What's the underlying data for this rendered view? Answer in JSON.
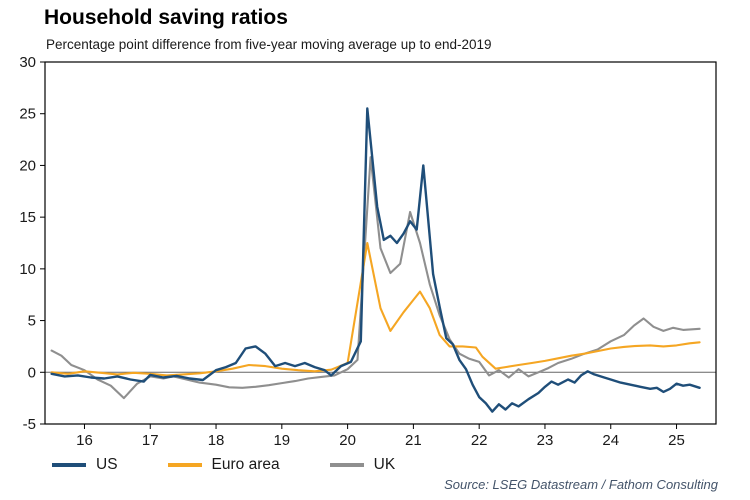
{
  "header": {
    "title": "Household saving ratios",
    "subtitle": "Percentage point difference from five-year moving average up to end-2019"
  },
  "source": "Source: LSEG Datastream / Fathom Consulting",
  "legend": [
    {
      "label": "US",
      "color": "#1F4E79"
    },
    {
      "label": "Euro area",
      "color": "#F5A623"
    },
    {
      "label": "UK",
      "color": "#8F8F8F"
    }
  ],
  "chart_data": {
    "type": "line",
    "title": "Household saving ratios",
    "subtitle": "Percentage point difference from five-year moving average up to end-2019",
    "xlabel": "",
    "ylabel": "",
    "grid": false,
    "legend_position": "bottom-left",
    "xlim": [
      2015.4,
      2025.6
    ],
    "ylim": [
      -5,
      30
    ],
    "y_ticks": [
      30,
      25,
      20,
      15,
      10,
      5,
      0,
      -5
    ],
    "x_ticks": [
      {
        "value": 2016,
        "label": "16"
      },
      {
        "value": 2017,
        "label": "17"
      },
      {
        "value": 2018,
        "label": "18"
      },
      {
        "value": 2019,
        "label": "19"
      },
      {
        "value": 2020,
        "label": "20"
      },
      {
        "value": 2021,
        "label": "21"
      },
      {
        "value": 2022,
        "label": "22"
      },
      {
        "value": 2023,
        "label": "23"
      },
      {
        "value": 2024,
        "label": "24"
      },
      {
        "value": 2025,
        "label": "25"
      }
    ],
    "zero_line": 0,
    "series": [
      {
        "name": "US",
        "color": "#1F4E79",
        "points": [
          [
            2015.5,
            -0.15
          ],
          [
            2015.7,
            -0.4
          ],
          [
            2015.9,
            -0.3
          ],
          [
            2016.1,
            -0.5
          ],
          [
            2016.3,
            -0.6
          ],
          [
            2016.5,
            -0.4
          ],
          [
            2016.7,
            -0.7
          ],
          [
            2016.9,
            -0.9
          ],
          [
            2017.0,
            -0.25
          ],
          [
            2017.2,
            -0.5
          ],
          [
            2017.4,
            -0.35
          ],
          [
            2017.6,
            -0.6
          ],
          [
            2017.8,
            -0.75
          ],
          [
            2018.0,
            0.2
          ],
          [
            2018.15,
            0.5
          ],
          [
            2018.3,
            0.9
          ],
          [
            2018.45,
            2.3
          ],
          [
            2018.6,
            2.5
          ],
          [
            2018.75,
            1.8
          ],
          [
            2018.9,
            0.6
          ],
          [
            2019.05,
            0.9
          ],
          [
            2019.2,
            0.6
          ],
          [
            2019.35,
            0.9
          ],
          [
            2019.5,
            0.5
          ],
          [
            2019.65,
            0.2
          ],
          [
            2019.75,
            -0.3
          ],
          [
            2019.9,
            0.6
          ],
          [
            2020.05,
            1.0
          ],
          [
            2020.2,
            3.0
          ],
          [
            2020.3,
            25.5
          ],
          [
            2020.45,
            16.0
          ],
          [
            2020.55,
            12.8
          ],
          [
            2020.65,
            13.2
          ],
          [
            2020.75,
            12.5
          ],
          [
            2020.85,
            13.4
          ],
          [
            2020.95,
            14.6
          ],
          [
            2021.05,
            13.8
          ],
          [
            2021.15,
            20.0
          ],
          [
            2021.3,
            9.5
          ],
          [
            2021.4,
            6.3
          ],
          [
            2021.5,
            3.3
          ],
          [
            2021.6,
            2.7
          ],
          [
            2021.7,
            1.2
          ],
          [
            2021.8,
            0.3
          ],
          [
            2021.9,
            -1.2
          ],
          [
            2022.0,
            -2.4
          ],
          [
            2022.1,
            -3.0
          ],
          [
            2022.2,
            -3.8
          ],
          [
            2022.3,
            -3.1
          ],
          [
            2022.4,
            -3.6
          ],
          [
            2022.5,
            -3.0
          ],
          [
            2022.6,
            -3.3
          ],
          [
            2022.75,
            -2.6
          ],
          [
            2022.9,
            -2.0
          ],
          [
            2023.0,
            -1.4
          ],
          [
            2023.1,
            -0.9
          ],
          [
            2023.2,
            -1.2
          ],
          [
            2023.35,
            -0.7
          ],
          [
            2023.45,
            -1.0
          ],
          [
            2023.55,
            -0.3
          ],
          [
            2023.65,
            0.1
          ],
          [
            2023.75,
            -0.2
          ],
          [
            2023.9,
            -0.5
          ],
          [
            2024.0,
            -0.7
          ],
          [
            2024.15,
            -1.0
          ],
          [
            2024.3,
            -1.2
          ],
          [
            2024.45,
            -1.4
          ],
          [
            2024.6,
            -1.6
          ],
          [
            2024.7,
            -1.5
          ],
          [
            2024.8,
            -1.9
          ],
          [
            2024.9,
            -1.6
          ],
          [
            2025.0,
            -1.1
          ],
          [
            2025.1,
            -1.3
          ],
          [
            2025.2,
            -1.2
          ],
          [
            2025.35,
            -1.5
          ]
        ]
      },
      {
        "name": "Euro area",
        "color": "#F5A623",
        "points": [
          [
            2015.5,
            0.0
          ],
          [
            2015.75,
            -0.15
          ],
          [
            2016.0,
            0.1
          ],
          [
            2016.25,
            -0.05
          ],
          [
            2016.5,
            -0.2
          ],
          [
            2016.75,
            -0.05
          ],
          [
            2017.0,
            -0.15
          ],
          [
            2017.25,
            -0.3
          ],
          [
            2017.5,
            -0.2
          ],
          [
            2017.75,
            -0.1
          ],
          [
            2018.0,
            0.1
          ],
          [
            2018.25,
            0.35
          ],
          [
            2018.5,
            0.7
          ],
          [
            2018.75,
            0.6
          ],
          [
            2019.0,
            0.35
          ],
          [
            2019.25,
            0.2
          ],
          [
            2019.5,
            0.1
          ],
          [
            2019.75,
            0.25
          ],
          [
            2020.0,
            0.9
          ],
          [
            2020.3,
            12.5
          ],
          [
            2020.5,
            6.2
          ],
          [
            2020.65,
            4.0
          ],
          [
            2020.85,
            5.8
          ],
          [
            2021.0,
            7.0
          ],
          [
            2021.1,
            7.8
          ],
          [
            2021.25,
            6.2
          ],
          [
            2021.4,
            3.6
          ],
          [
            2021.55,
            2.5
          ],
          [
            2021.75,
            2.5
          ],
          [
            2021.95,
            2.4
          ],
          [
            2022.05,
            1.5
          ],
          [
            2022.25,
            0.35
          ],
          [
            2022.4,
            0.5
          ],
          [
            2022.6,
            0.7
          ],
          [
            2022.8,
            0.9
          ],
          [
            2023.0,
            1.1
          ],
          [
            2023.2,
            1.35
          ],
          [
            2023.4,
            1.6
          ],
          [
            2023.6,
            1.8
          ],
          [
            2023.8,
            2.05
          ],
          [
            2024.0,
            2.3
          ],
          [
            2024.2,
            2.45
          ],
          [
            2024.4,
            2.55
          ],
          [
            2024.6,
            2.6
          ],
          [
            2024.8,
            2.5
          ],
          [
            2025.0,
            2.6
          ],
          [
            2025.2,
            2.8
          ],
          [
            2025.35,
            2.9
          ]
        ]
      },
      {
        "name": "UK",
        "color": "#8F8F8F",
        "points": [
          [
            2015.5,
            2.1
          ],
          [
            2015.65,
            1.6
          ],
          [
            2015.8,
            0.7
          ],
          [
            2016.0,
            0.2
          ],
          [
            2016.2,
            -0.7
          ],
          [
            2016.4,
            -1.3
          ],
          [
            2016.6,
            -2.5
          ],
          [
            2016.8,
            -1.1
          ],
          [
            2017.0,
            -0.4
          ],
          [
            2017.2,
            -0.6
          ],
          [
            2017.35,
            -0.4
          ],
          [
            2017.55,
            -0.7
          ],
          [
            2017.75,
            -1.0
          ],
          [
            2018.0,
            -1.2
          ],
          [
            2018.2,
            -1.45
          ],
          [
            2018.4,
            -1.5
          ],
          [
            2018.6,
            -1.4
          ],
          [
            2018.8,
            -1.25
          ],
          [
            2019.0,
            -1.05
          ],
          [
            2019.2,
            -0.85
          ],
          [
            2019.4,
            -0.6
          ],
          [
            2019.6,
            -0.45
          ],
          [
            2019.8,
            -0.3
          ],
          [
            2020.0,
            0.3
          ],
          [
            2020.15,
            1.2
          ],
          [
            2020.35,
            20.8
          ],
          [
            2020.5,
            12.0
          ],
          [
            2020.65,
            9.6
          ],
          [
            2020.8,
            10.5
          ],
          [
            2020.95,
            15.5
          ],
          [
            2021.1,
            12.5
          ],
          [
            2021.25,
            8.5
          ],
          [
            2021.4,
            5.5
          ],
          [
            2021.55,
            3.2
          ],
          [
            2021.7,
            1.8
          ],
          [
            2021.85,
            1.3
          ],
          [
            2022.0,
            1.0
          ],
          [
            2022.15,
            -0.3
          ],
          [
            2022.3,
            0.2
          ],
          [
            2022.45,
            -0.5
          ],
          [
            2022.6,
            0.3
          ],
          [
            2022.75,
            -0.4
          ],
          [
            2022.9,
            0.0
          ],
          [
            2023.05,
            0.4
          ],
          [
            2023.2,
            0.9
          ],
          [
            2023.4,
            1.3
          ],
          [
            2023.6,
            1.8
          ],
          [
            2023.8,
            2.2
          ],
          [
            2024.0,
            3.0
          ],
          [
            2024.2,
            3.6
          ],
          [
            2024.35,
            4.5
          ],
          [
            2024.5,
            5.2
          ],
          [
            2024.65,
            4.4
          ],
          [
            2024.8,
            4.0
          ],
          [
            2024.95,
            4.3
          ],
          [
            2025.1,
            4.1
          ],
          [
            2025.35,
            4.2
          ]
        ]
      }
    ]
  }
}
